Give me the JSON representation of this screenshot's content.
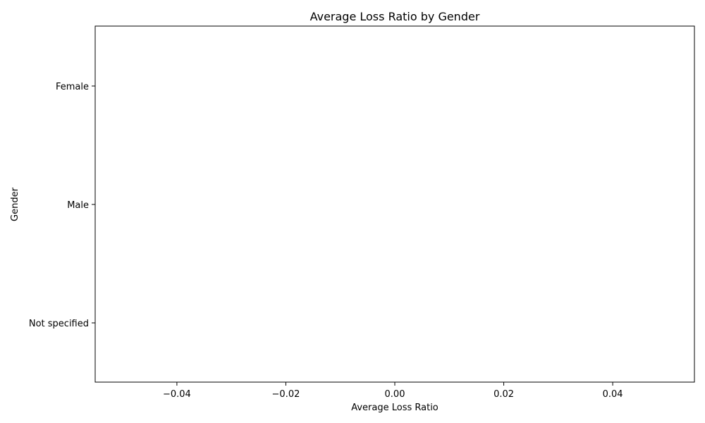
{
  "chart_data": {
    "type": "bar",
    "orientation": "horizontal",
    "title": "Average Loss Ratio by Gender",
    "xlabel": "Average Loss Ratio",
    "ylabel": "Gender",
    "categories": [
      "Female",
      "Male",
      "Not specified"
    ],
    "values": [
      0,
      0,
      0
    ],
    "xlim": [
      -0.055,
      0.055
    ],
    "xticks": [
      -0.04,
      -0.02,
      0.0,
      0.02,
      0.04
    ],
    "xtick_labels": [
      "−0.04",
      "−0.02",
      "0.00",
      "0.02",
      "0.04"
    ],
    "grid": false,
    "colors": {
      "axis": "#000000",
      "background": "#ffffff",
      "bar": "#1f77b4"
    }
  }
}
